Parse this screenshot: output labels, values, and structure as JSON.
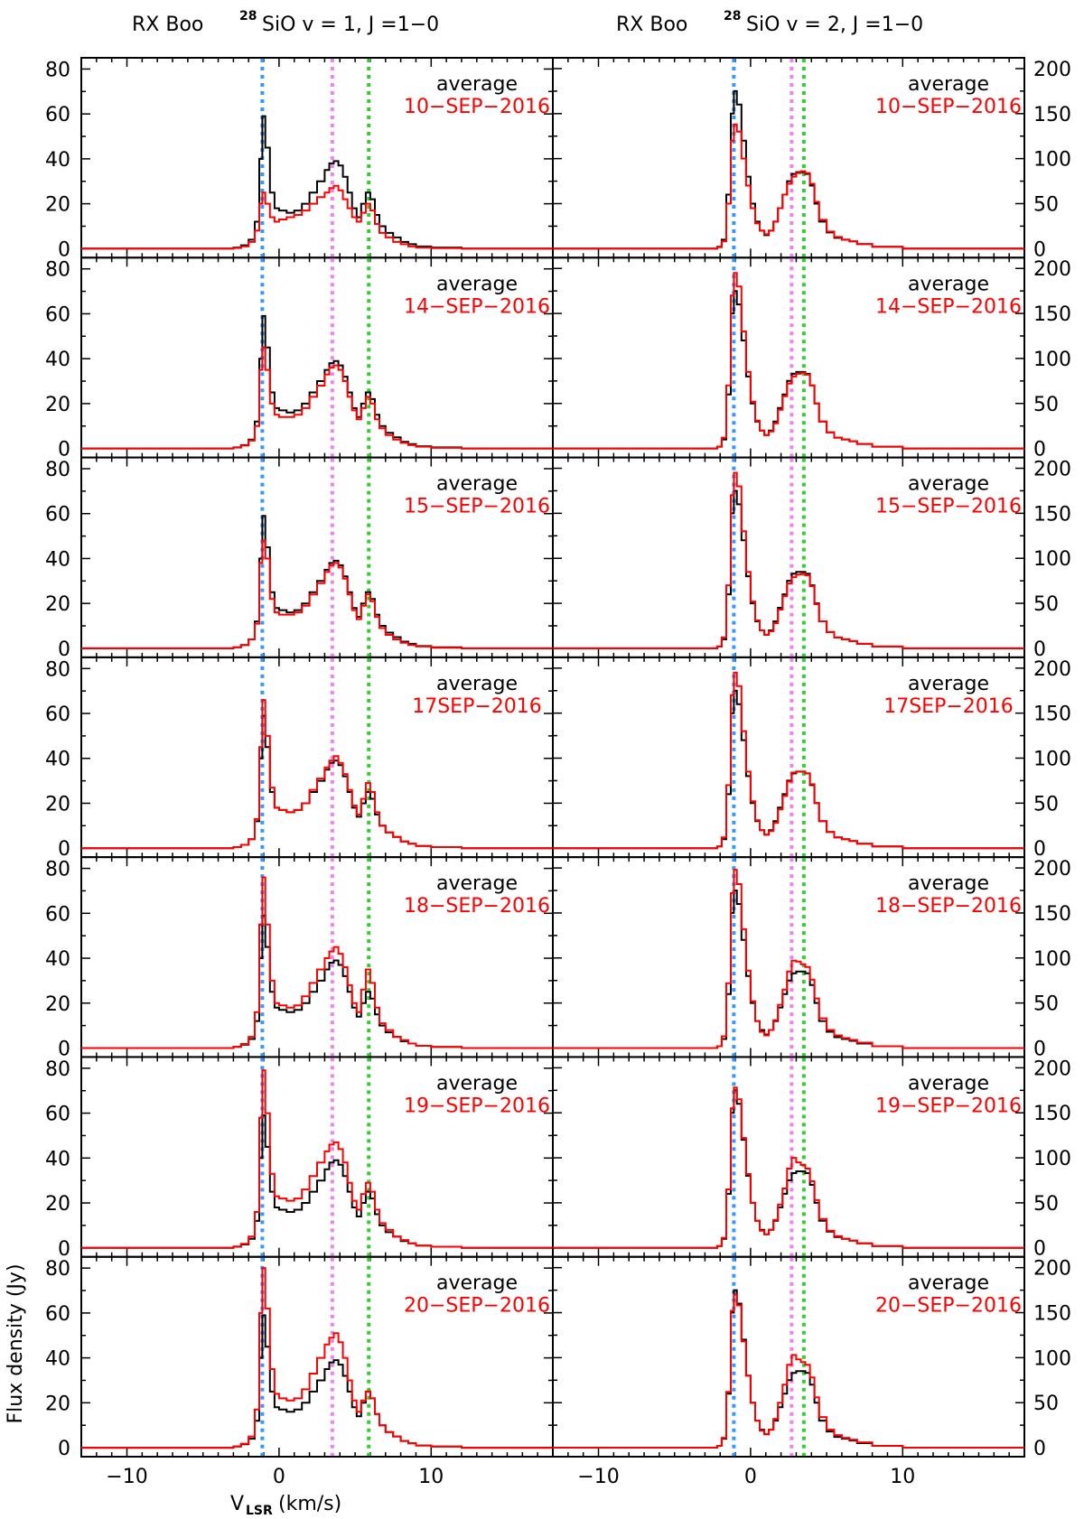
{
  "figure": {
    "column_titles": [
      {
        "source": "RX Boo",
        "isotope": "28",
        "transition": "SiO v = 1, J =1−0"
      },
      {
        "source": "RX Boo",
        "isotope": "28",
        "transition": "SiO v = 2, J =1−0"
      }
    ],
    "xlabel": {
      "main": "V",
      "sub": "LSR",
      "unit": "(km/s)"
    },
    "ylabel": "Flux density (Jy)",
    "reference_label": "average",
    "colors": {
      "average": "#000000",
      "epoch": "#ff0000",
      "vline_blue": "#3399ff",
      "vline_violet": "#ee82ee",
      "vline_green": "#33cc33"
    }
  },
  "chart_data": [
    {
      "type": "line",
      "column": 0,
      "xlim": [
        -13,
        18
      ],
      "ylim": [
        -4,
        85
      ],
      "xticks": [
        -10,
        0,
        10
      ],
      "xtick_labels": [
        "−10",
        "0",
        "10"
      ],
      "yticks": [
        0,
        20,
        40,
        60,
        80
      ],
      "ytick_labels": [
        "0",
        "20",
        "40",
        "60",
        "80"
      ],
      "reference_velocities": [
        -1.1,
        3.5,
        5.9
      ],
      "average": {
        "name": "average",
        "x": [
          -13,
          -4,
          -3,
          -2.5,
          -2,
          -1.6,
          -1.3,
          -1.1,
          -0.9,
          -0.6,
          -0.3,
          0,
          0.5,
          1,
          1.5,
          2,
          2.5,
          3,
          3.3,
          3.6,
          3.9,
          4.2,
          4.5,
          4.8,
          5.1,
          5.4,
          5.7,
          6.0,
          6.3,
          6.6,
          7,
          7.5,
          8,
          8.5,
          9,
          10,
          12,
          18
        ],
        "y": [
          0,
          0,
          0.5,
          1.5,
          4,
          12,
          40,
          59,
          45,
          25,
          18,
          17,
          16,
          17,
          20,
          25,
          30,
          35,
          38,
          39,
          37,
          32,
          25,
          18,
          14,
          20,
          25,
          22,
          15,
          10,
          7,
          5,
          3,
          2,
          1,
          0.5,
          0,
          0
        ]
      },
      "epochs": [
        {
          "name": "10−SEP−2016",
          "label": "10−SEP−2016",
          "y": [
            0,
            0,
            0.3,
            1,
            3,
            8,
            20,
            25,
            20,
            14,
            12,
            13,
            14,
            15,
            17,
            20,
            23,
            25,
            27,
            28,
            26,
            22,
            18,
            14,
            12,
            16,
            20,
            17,
            11,
            7,
            5,
            3,
            2,
            1,
            0.5,
            0.2,
            0,
            0
          ]
        },
        {
          "name": "14−SEP−2016",
          "label": "14−SEP−2016",
          "y": [
            0,
            0,
            0.4,
            1.3,
            3.5,
            10,
            35,
            45,
            35,
            20,
            15,
            14,
            14,
            15,
            18,
            23,
            28,
            33,
            36,
            37,
            35,
            30,
            23,
            17,
            13,
            18,
            23,
            20,
            13,
            9,
            6,
            4,
            2.5,
            1.5,
            0.8,
            0.3,
            0,
            0
          ]
        },
        {
          "name": "15−SEP−2016",
          "label": "15−SEP−2016",
          "y": [
            0,
            0,
            0.5,
            1.5,
            4,
            11,
            38,
            48,
            40,
            22,
            16,
            15,
            15,
            16,
            19,
            24,
            29,
            34,
            37,
            38,
            36,
            31,
            24,
            17,
            13,
            19,
            24,
            21,
            14,
            9,
            6,
            4,
            2.5,
            1.5,
            0.8,
            0.3,
            0,
            0
          ]
        },
        {
          "name": "17−SEP−2016",
          "label": "17SEP−2016",
          "y": [
            0,
            0,
            0.5,
            1.5,
            4,
            13,
            45,
            66,
            50,
            27,
            18,
            17,
            16,
            17,
            20,
            26,
            31,
            36,
            39,
            41,
            38,
            33,
            26,
            19,
            15,
            22,
            29,
            25,
            16,
            10,
            7,
            5,
            3,
            2,
            1,
            0.5,
            0,
            0
          ]
        },
        {
          "name": "18−SEP−2016",
          "label": "18−SEP−2016",
          "y": [
            0,
            0,
            0.6,
            1.8,
            5,
            16,
            55,
            76,
            55,
            30,
            20,
            19,
            18,
            19,
            23,
            29,
            35,
            40,
            43,
            45,
            42,
            36,
            28,
            20,
            16,
            26,
            35,
            29,
            18,
            11,
            8,
            5,
            3.5,
            2,
            1,
            0.5,
            0,
            0
          ]
        },
        {
          "name": "19−SEP−2016",
          "label": "19−SEP−2016",
          "y": [
            0,
            0,
            0.6,
            1.8,
            5,
            16,
            58,
            79,
            60,
            33,
            23,
            22,
            21,
            22,
            26,
            32,
            38,
            43,
            46,
            47,
            44,
            38,
            29,
            21,
            17,
            24,
            29,
            25,
            17,
            11,
            8,
            5,
            3.5,
            2,
            1,
            0.5,
            0,
            0
          ]
        },
        {
          "name": "20−SEP−2016",
          "label": "20−SEP−2016",
          "y": [
            0,
            0,
            0.6,
            1.8,
            5,
            17,
            60,
            80,
            62,
            35,
            24,
            22,
            21,
            22,
            26,
            33,
            40,
            46,
            49,
            51,
            47,
            40,
            30,
            21,
            16,
            21,
            25,
            22,
            15,
            10,
            7,
            5,
            3,
            2,
            1,
            0.5,
            0,
            0
          ]
        }
      ]
    },
    {
      "type": "line",
      "column": 1,
      "xlim": [
        -13,
        18
      ],
      "ylim": [
        -10,
        212
      ],
      "xticks": [
        -10,
        0,
        10
      ],
      "xtick_labels": [
        "−10",
        "0",
        "10"
      ],
      "yticks": [
        0,
        50,
        100,
        150,
        200
      ],
      "ytick_labels": [
        "0",
        "50",
        "100",
        "150",
        "200"
      ],
      "reference_velocities": [
        -1.1,
        2.7,
        3.5
      ],
      "average": {
        "name": "average",
        "x": [
          -13,
          -3,
          -2.2,
          -1.9,
          -1.6,
          -1.3,
          -1.1,
          -0.9,
          -0.6,
          -0.3,
          0,
          0.3,
          0.6,
          0.9,
          1.2,
          1.5,
          1.8,
          2.1,
          2.4,
          2.7,
          3.0,
          3.3,
          3.6,
          3.9,
          4.2,
          4.5,
          5,
          5.5,
          6,
          6.5,
          7,
          8,
          10,
          18
        ],
        "y": [
          0,
          0,
          2,
          10,
          60,
          150,
          175,
          160,
          120,
          80,
          50,
          30,
          20,
          15,
          20,
          30,
          45,
          60,
          75,
          83,
          85,
          85,
          83,
          70,
          50,
          30,
          18,
          12,
          10,
          8,
          5,
          2,
          0,
          0
        ]
      },
      "epochs": [
        {
          "name": "10−SEP−2016",
          "label": "10−SEP−2016",
          "y": [
            0,
            0,
            1.5,
            8,
            50,
            120,
            138,
            130,
            100,
            70,
            45,
            28,
            20,
            16,
            20,
            30,
            45,
            60,
            72,
            80,
            84,
            86,
            84,
            72,
            52,
            32,
            19,
            13,
            10,
            8,
            5,
            2,
            0,
            0
          ]
        },
        {
          "name": "14−SEP−2016",
          "label": "14−SEP−2016",
          "y": [
            0,
            0,
            2,
            12,
            70,
            170,
            195,
            180,
            130,
            85,
            52,
            31,
            20,
            15,
            19,
            28,
            43,
            58,
            72,
            80,
            83,
            84,
            82,
            70,
            50,
            30,
            18,
            12,
            10,
            8,
            5,
            2,
            0,
            0
          ]
        },
        {
          "name": "15−SEP−2016",
          "label": "15−SEP−2016",
          "y": [
            0,
            0,
            2,
            12,
            70,
            170,
            195,
            180,
            130,
            85,
            52,
            31,
            20,
            15,
            19,
            28,
            43,
            58,
            72,
            79,
            82,
            83,
            81,
            69,
            49,
            30,
            18,
            12,
            10,
            8,
            5,
            2,
            0,
            0
          ]
        },
        {
          "name": "17−SEP−2016",
          "label": "17SEP−2016",
          "y": [
            0,
            0,
            2,
            12,
            70,
            170,
            195,
            180,
            130,
            85,
            52,
            31,
            20,
            15,
            19,
            28,
            43,
            58,
            74,
            84,
            85,
            85,
            83,
            71,
            50,
            30,
            18,
            12,
            10,
            8,
            5,
            2,
            0,
            0
          ]
        },
        {
          "name": "18−SEP−2016",
          "label": "18−SEP−2016",
          "y": [
            0,
            0,
            2,
            13,
            72,
            172,
            198,
            182,
            132,
            86,
            52,
            30,
            18,
            14,
            20,
            31,
            48,
            65,
            85,
            97,
            96,
            93,
            90,
            76,
            55,
            33,
            20,
            14,
            11,
            9,
            6,
            2,
            0,
            0
          ]
        },
        {
          "name": "19−SEP−2016",
          "label": "19−SEP−2016",
          "y": [
            0,
            0,
            2,
            11,
            65,
            155,
            178,
            165,
            122,
            82,
            50,
            30,
            19,
            15,
            20,
            31,
            48,
            66,
            88,
            100,
            95,
            92,
            88,
            74,
            53,
            32,
            19,
            13,
            10,
            8,
            5,
            2,
            0,
            0
          ]
        },
        {
          "name": "20−SEP−2016",
          "label": "20−SEP−2016",
          "y": [
            0,
            0,
            2,
            11,
            62,
            152,
            170,
            158,
            118,
            80,
            50,
            30,
            19,
            15,
            20,
            32,
            50,
            70,
            92,
            103,
            98,
            95,
            92,
            78,
            56,
            34,
            20,
            14,
            11,
            9,
            6,
            2,
            0,
            0
          ]
        }
      ]
    }
  ]
}
